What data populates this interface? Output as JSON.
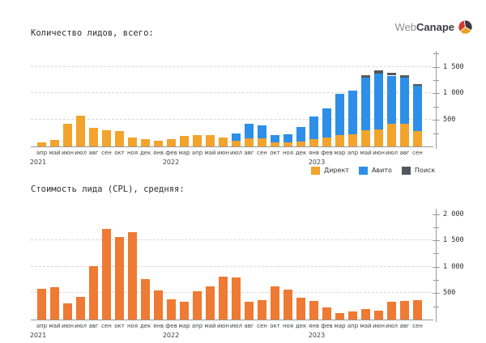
{
  "page": {
    "title_leads": "Количество лидов, всего:",
    "title_cpl": "Стоимость лида (CPL), средняя:",
    "logo": {
      "part1": "Web",
      "part2": "Canape"
    }
  },
  "colors": {
    "direkt": "#F2A42C",
    "avito": "#2D8FE8",
    "poisk": "#53585E",
    "cpl": "#EE7A33",
    "grid": "#DCD4D4",
    "axis": "#9A9A9A",
    "logo_red": "#D6392E",
    "logo_yellow": "#E8A21F",
    "logo_dark": "#3B3B40"
  },
  "years": [
    "2021",
    "2022",
    "2023"
  ],
  "chart_data": [
    {
      "type": "bar",
      "stacked": true,
      "title": "Количество лидов, всего:",
      "categories": [
        "апр",
        "май",
        "июн",
        "июл",
        "авг",
        "сен",
        "окт",
        "ноя",
        "дек",
        "янв",
        "фев",
        "мар",
        "апр",
        "май",
        "июн",
        "июл",
        "авг",
        "сен",
        "окт",
        "ноя",
        "дек",
        "янв",
        "фев",
        "мар",
        "апр",
        "май",
        "июн",
        "июл",
        "авг",
        "сен"
      ],
      "year_row": [
        "2021",
        "2022",
        "2023"
      ],
      "series": [
        {
          "name": "Директ",
          "color": "#F2A42C",
          "values": [
            75,
            115,
            420,
            580,
            355,
            305,
            285,
            170,
            130,
            100,
            135,
            195,
            210,
            220,
            175,
            110,
            150,
            160,
            75,
            75,
            90,
            140,
            175,
            215,
            225,
            305,
            320,
            430,
            430,
            295
          ]
        },
        {
          "name": "Авито",
          "color": "#2D8FE8",
          "values": [
            0,
            0,
            0,
            0,
            0,
            0,
            0,
            0,
            0,
            0,
            0,
            0,
            0,
            0,
            0,
            140,
            280,
            230,
            140,
            155,
            280,
            420,
            535,
            770,
            825,
            985,
            1060,
            905,
            860,
            850
          ]
        },
        {
          "name": "Поиск",
          "color": "#53585E",
          "values": [
            0,
            0,
            0,
            0,
            0,
            0,
            0,
            0,
            0,
            0,
            0,
            0,
            0,
            0,
            0,
            0,
            0,
            0,
            0,
            0,
            0,
            0,
            0,
            0,
            0,
            50,
            60,
            55,
            50,
            35
          ]
        }
      ],
      "ylim": [
        0,
        1800
      ],
      "yticks_major": [
        {
          "value": 500,
          "label": "500"
        },
        {
          "value": 1000,
          "label": "1 000"
        },
        {
          "value": 1500,
          "label": "1 500"
        }
      ],
      "yticks_minor": [
        250,
        750,
        1250,
        1750
      ],
      "gridlines": [
        500,
        1000,
        1500
      ],
      "grid": true,
      "legend_position": "bottom-right",
      "legend": [
        "Директ",
        "Авито",
        "Поиск"
      ]
    },
    {
      "type": "bar",
      "stacked": false,
      "title": "Стоимость лида (CPL), средняя:",
      "categories": [
        "апр",
        "май",
        "июн",
        "июл",
        "авг",
        "сен",
        "окт",
        "ноя",
        "дек",
        "янв",
        "фев",
        "мар",
        "апр",
        "май",
        "июн",
        "июл",
        "авг",
        "сен",
        "окт",
        "ноя",
        "дек",
        "янв",
        "фев",
        "мар",
        "апр",
        "май",
        "июн",
        "июл",
        "авг",
        "сен"
      ],
      "year_row": [
        "2021",
        "2022",
        "2023"
      ],
      "series": [
        {
          "name": "CPL",
          "color": "#EE7A33",
          "values": [
            580,
            615,
            300,
            425,
            1005,
            1710,
            1570,
            1655,
            770,
            555,
            385,
            345,
            540,
            635,
            810,
            790,
            340,
            375,
            630,
            565,
            410,
            350,
            230,
            130,
            155,
            205,
            165,
            335,
            360,
            375
          ]
        }
      ],
      "ylim": [
        0,
        2100
      ],
      "yticks_major": [
        {
          "value": 500,
          "label": "500"
        },
        {
          "value": 1000,
          "label": "1 000"
        },
        {
          "value": 1500,
          "label": "1 500"
        },
        {
          "value": 2000,
          "label": "2 000"
        }
      ],
      "yticks_minor": [
        250,
        750,
        1250,
        1750
      ],
      "gridlines": [
        500,
        1000,
        1500
      ],
      "grid": true,
      "legend_position": "none"
    }
  ]
}
